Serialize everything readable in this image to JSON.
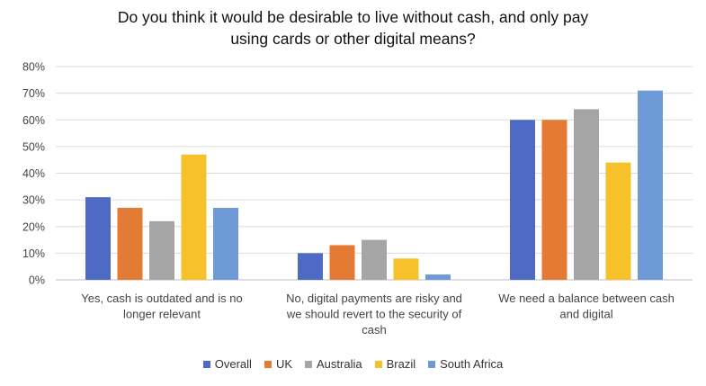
{
  "chart_data": {
    "type": "bar",
    "title_lines": [
      "Do you think it would be desirable to live without cash, and only pay",
      "using cards or other digital means?"
    ],
    "categories": [
      [
        "Yes, cash is outdated and is no",
        "longer relevant"
      ],
      [
        "No, digital payments are risky and",
        "we should revert to the security of",
        "cash"
      ],
      [
        "We need a balance between cash",
        "and digital"
      ]
    ],
    "series": [
      {
        "name": "Overall",
        "color": "#4e6ac4",
        "values": [
          31,
          10,
          60
        ]
      },
      {
        "name": "UK",
        "color": "#e47b35",
        "values": [
          27,
          13,
          60
        ]
      },
      {
        "name": "Australia",
        "color": "#a5a5a5",
        "values": [
          22,
          15,
          64
        ]
      },
      {
        "name": "Brazil",
        "color": "#f6c12a",
        "values": [
          47,
          8,
          44
        ]
      },
      {
        "name": "South Africa",
        "color": "#6d9ad7",
        "values": [
          27,
          2,
          71
        ]
      }
    ],
    "ylim": [
      0,
      80
    ],
    "yticks": [
      "0%",
      "10%",
      "20%",
      "30%",
      "40%",
      "50%",
      "60%",
      "70%",
      "80%"
    ],
    "grid": true,
    "legend": "bottom"
  }
}
